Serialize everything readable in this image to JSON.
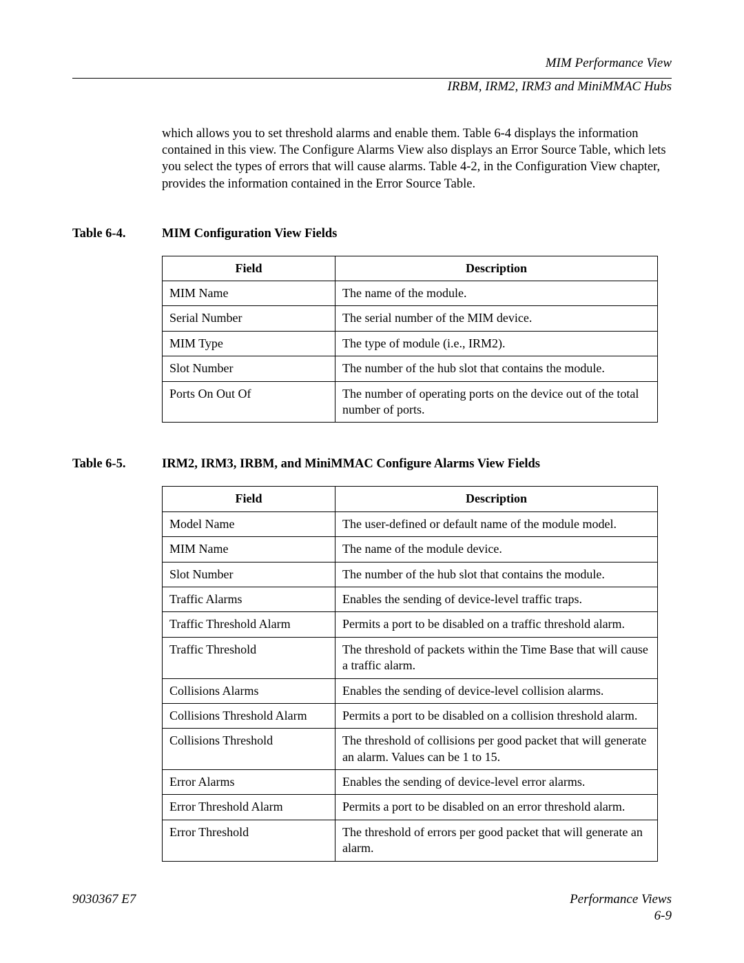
{
  "header": {
    "title": "MIM Performance View",
    "subtitle": "IRBM, IRM2, IRM3 and MiniMMAC Hubs"
  },
  "paragraph": "which allows you to set threshold alarms and enable them. Table 6-4 displays the information contained in this view. The Configure Alarms View also displays an Error Source Table, which lets you select the types of errors that will cause alarms. Table 4-2, in the Configuration View chapter, provides the information contained in the Error Source Table.",
  "table64": {
    "label": "Table 6-4.",
    "title": "MIM Configuration View Fields",
    "head_field": "Field",
    "head_desc": "Description",
    "rows": [
      {
        "field": "MIM Name",
        "desc": "The name of the module."
      },
      {
        "field": "Serial Number",
        "desc": "The serial number of the MIM device."
      },
      {
        "field": "MIM Type",
        "desc": "The type of module (i.e., IRM2)."
      },
      {
        "field": "Slot Number",
        "desc": "The number of the hub slot that contains the module."
      },
      {
        "field": "Ports On Out Of",
        "desc": "The number of operating ports on the device out of the total number of ports."
      }
    ]
  },
  "table65": {
    "label": "Table 6-5.",
    "title": "IRM2, IRM3, IRBM, and MiniMMAC Configure Alarms View Fields",
    "head_field": "Field",
    "head_desc": "Description",
    "rows": [
      {
        "field": "Model Name",
        "desc": "The user-defined or default name of the module model."
      },
      {
        "field": "MIM Name",
        "desc": "The name of the module device."
      },
      {
        "field": "Slot Number",
        "desc": "The number of the hub slot that contains the module."
      },
      {
        "field": "Traffic Alarms",
        "desc": "Enables the sending of device-level traffic traps."
      },
      {
        "field": "Traffic Threshold Alarm",
        "desc": "Permits a port to be disabled on a traffic threshold alarm."
      },
      {
        "field": "Traffic Threshold",
        "desc": "The threshold of packets within the Time Base that will cause a traffic alarm."
      },
      {
        "field": "Collisions Alarms",
        "desc": "Enables the sending of device-level collision alarms."
      },
      {
        "field": "Collisions Threshold Alarm",
        "desc": "Permits a port to be disabled on a collision threshold alarm."
      },
      {
        "field": "Collisions Threshold",
        "desc": "The threshold of collisions per good packet that will generate an alarm. Values can be 1 to 15."
      },
      {
        "field": "Error Alarms",
        "desc": "Enables the sending of device-level error alarms."
      },
      {
        "field": "Error Threshold Alarm",
        "desc": "Permits a port to be disabled on an error threshold alarm."
      },
      {
        "field": "Error Threshold",
        "desc": "The threshold of errors per good packet that will generate an alarm."
      }
    ]
  },
  "footer": {
    "left": "9030367 E7",
    "right_title": "Performance Views",
    "right_page": "6-9"
  }
}
